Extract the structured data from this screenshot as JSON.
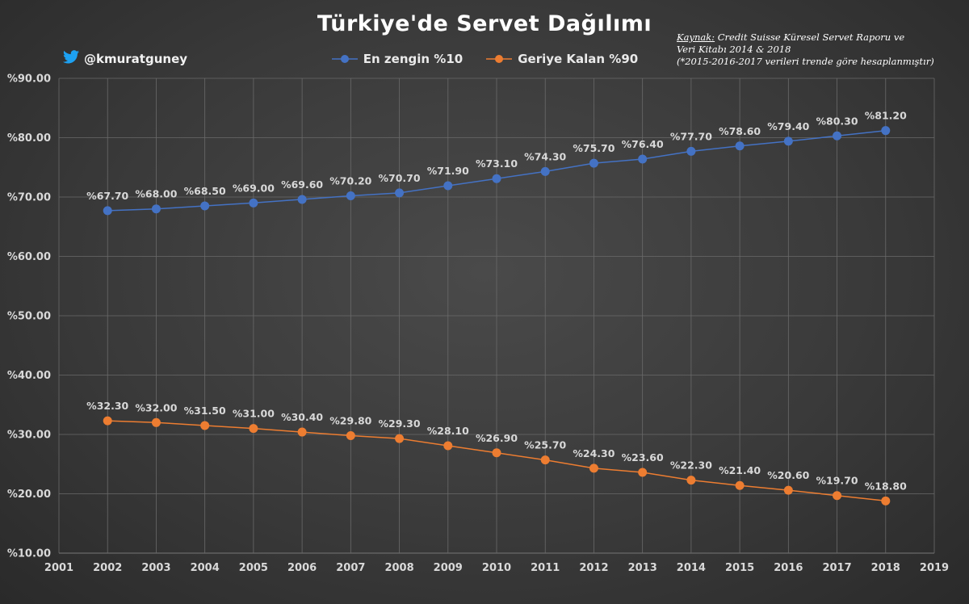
{
  "header": {
    "title": "Türkiye'de Servet Dağılımı",
    "handle": "@kmuratguney",
    "source_key": "Kaynak:",
    "source_text_1": " Credit Suisse Küresel Servet Raporu ve",
    "source_text_2": "Veri Kitabı 2014 & 2018",
    "source_text_3": "(*2015-2016-2017 verileri trende göre hesaplanmıştır)"
  },
  "colors": {
    "top10": "#4472C4",
    "rest90": "#ED7D31",
    "twitter": "#1DA1F2",
    "grid": "#6a6a6a"
  },
  "chart_data": {
    "type": "line",
    "title": "Türkiye'de Servet Dağılımı",
    "x": [
      2002,
      2003,
      2004,
      2005,
      2006,
      2007,
      2008,
      2009,
      2010,
      2011,
      2012,
      2013,
      2014,
      2015,
      2016,
      2017,
      2018
    ],
    "x_ticks": [
      "2001",
      "2002",
      "2003",
      "2004",
      "2005",
      "2006",
      "2007",
      "2008",
      "2009",
      "2010",
      "2011",
      "2012",
      "2013",
      "2014",
      "2015",
      "2016",
      "2017",
      "2018",
      "2019"
    ],
    "xlim": [
      2001,
      2019
    ],
    "ylim": [
      10,
      90
    ],
    "y_ticks": [
      "%10.00",
      "%20.00",
      "%30.00",
      "%40.00",
      "%50.00",
      "%60.00",
      "%70.00",
      "%80.00",
      "%90.00"
    ],
    "grid": true,
    "legend_position": "top",
    "series": [
      {
        "name": "En zengin %10",
        "values": [
          67.7,
          68.0,
          68.5,
          69.0,
          69.6,
          70.2,
          70.7,
          71.9,
          73.1,
          74.3,
          75.7,
          76.4,
          77.7,
          78.6,
          79.4,
          80.3,
          81.2
        ],
        "labels": [
          "%67.70",
          "%68.00",
          "%68.50",
          "%69.00",
          "%69.60",
          "%70.20",
          "%70.70",
          "%71.90",
          "%73.10",
          "%74.30",
          "%75.70",
          "%76.40",
          "%77.70",
          "%78.60",
          "%79.40",
          "%80.30",
          "%81.20"
        ]
      },
      {
        "name": "Geriye Kalan %90",
        "values": [
          32.3,
          32.0,
          31.5,
          31.0,
          30.4,
          29.8,
          29.3,
          28.1,
          26.9,
          25.7,
          24.3,
          23.6,
          22.3,
          21.4,
          20.6,
          19.7,
          18.8
        ],
        "labels": [
          "%32.30",
          "%32.00",
          "%31.50",
          "%31.00",
          "%30.40",
          "%29.80",
          "%29.30",
          "%28.10",
          "%26.90",
          "%25.70",
          "%24.30",
          "%23.60",
          "%22.30",
          "%21.40",
          "%20.60",
          "%19.70",
          "%18.80"
        ]
      }
    ]
  }
}
